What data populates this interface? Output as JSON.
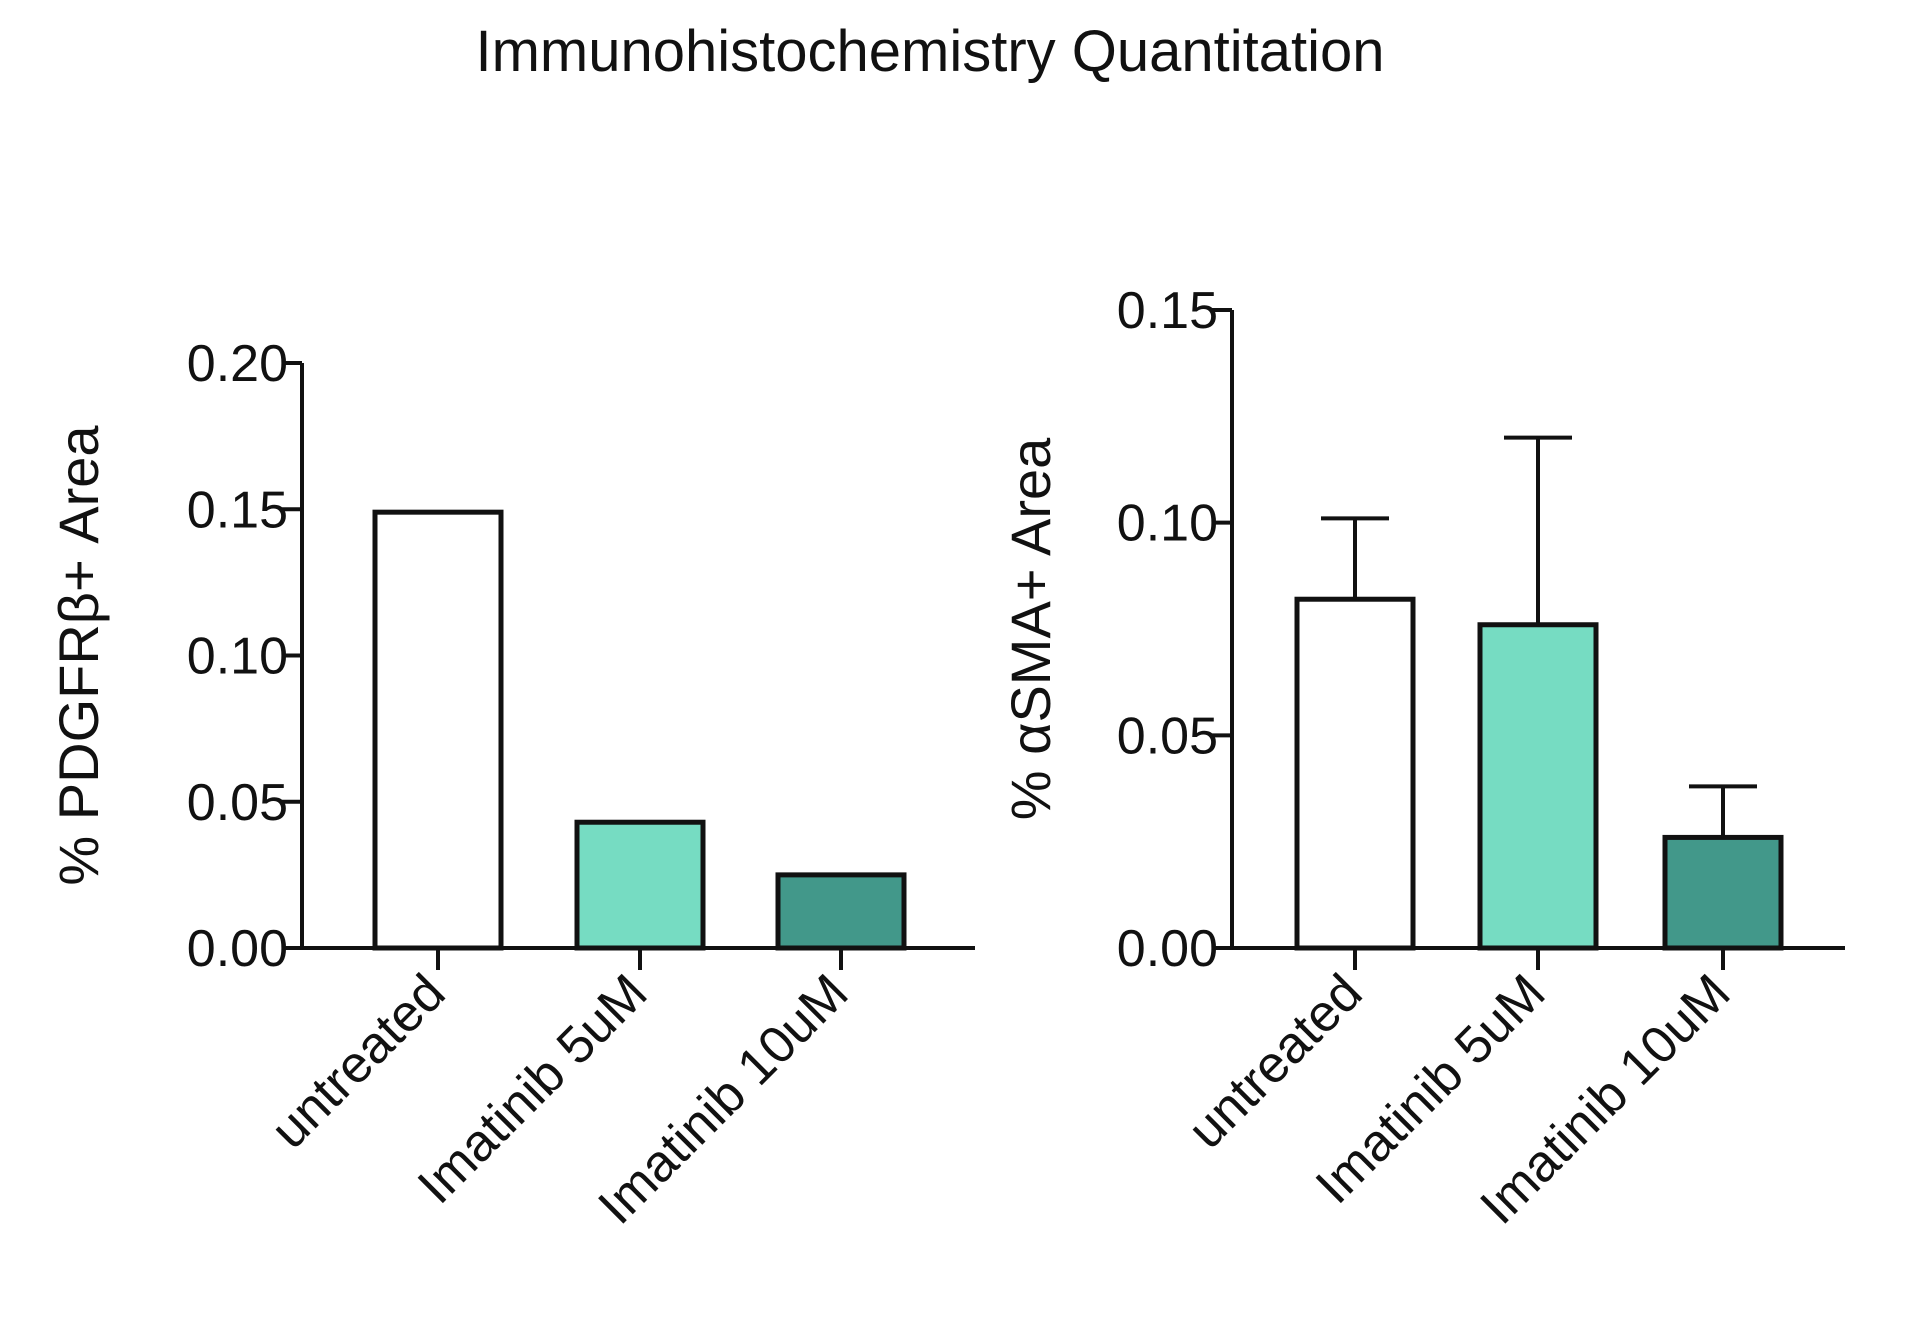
{
  "title": "Immunohistochemistry Quantitation",
  "colors": {
    "untreated": "#ffffff",
    "imatinib_5": "#76dcc2",
    "imatinib_10": "#42988a",
    "stroke": "#111111"
  },
  "chart_data": [
    {
      "type": "bar",
      "categories": [
        "untreated",
        "Imatinib 5uM",
        "Imatinib 10uM"
      ],
      "values": [
        0.149,
        0.043,
        0.025
      ],
      "errors": [
        null,
        null,
        null
      ],
      "ylabel": "% PDGFRβ+ Area",
      "xlabel": "",
      "ylim": [
        0,
        0.2
      ],
      "yticks": [
        "0.00",
        "0.05",
        "0.10",
        "0.15",
        "0.20"
      ],
      "bar_colors": [
        "#ffffff",
        "#76dcc2",
        "#42988a"
      ],
      "grid": false
    },
    {
      "type": "bar",
      "categories": [
        "untreated",
        "Imatinib 5uM",
        "Imatinib 10uM"
      ],
      "values": [
        0.082,
        0.076,
        0.026
      ],
      "errors": [
        0.019,
        0.044,
        0.012
      ],
      "ylabel": "% αSMA+ Area",
      "xlabel": "",
      "ylim": [
        0,
        0.15
      ],
      "yticks": [
        "0.00",
        "0.05",
        "0.10",
        "0.15"
      ],
      "bar_colors": [
        "#ffffff",
        "#76dcc2",
        "#42988a"
      ],
      "grid": false
    }
  ]
}
